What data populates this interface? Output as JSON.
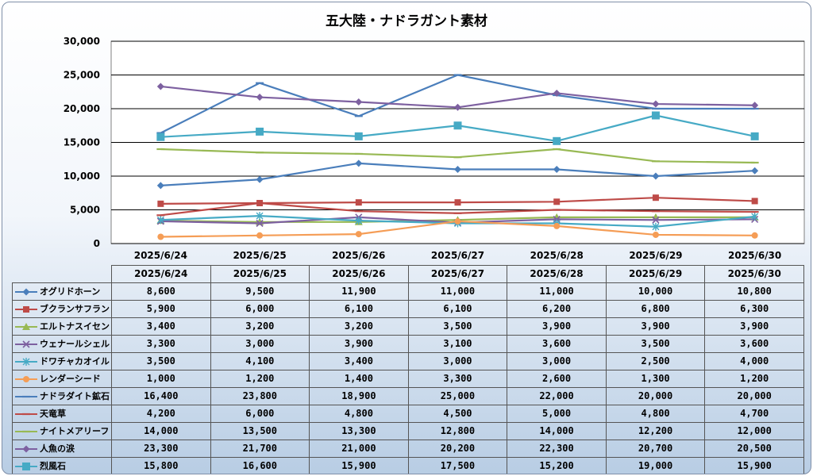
{
  "chart_data": {
    "type": "line",
    "title": "五大陸・ナドラガント素材",
    "categories": [
      "2025/6/24",
      "2025/6/25",
      "2025/6/26",
      "2025/6/27",
      "2025/6/28",
      "2025/6/29",
      "2025/6/30"
    ],
    "ylim": [
      0,
      30000
    ],
    "yticks": [
      "0",
      "5,000",
      "10,000",
      "15,000",
      "20,000",
      "25,000",
      "30,000"
    ],
    "grid": true,
    "legend": "data-table",
    "series": [
      {
        "name": "オグリドホーン",
        "color": "#4a7ebb",
        "marker": "diamond",
        "values": [
          8600,
          9500,
          11900,
          11000,
          11000,
          10000,
          10800
        ],
        "labels": [
          "8,600",
          "9,500",
          "11,900",
          "11,000",
          "11,000",
          "10,000",
          "10,800"
        ]
      },
      {
        "name": "ブクランサフラン",
        "color": "#be4b48",
        "marker": "square",
        "values": [
          5900,
          6000,
          6100,
          6100,
          6200,
          6800,
          6300
        ],
        "labels": [
          "5,900",
          "6,000",
          "6,100",
          "6,100",
          "6,200",
          "6,800",
          "6,300"
        ]
      },
      {
        "name": "エルトナスイセン",
        "color": "#98b954",
        "marker": "triangle",
        "values": [
          3400,
          3200,
          3200,
          3500,
          3900,
          3900,
          3900
        ],
        "labels": [
          "3,400",
          "3,200",
          "3,200",
          "3,500",
          "3,900",
          "3,900",
          "3,900"
        ]
      },
      {
        "name": "ウェナールシェル",
        "color": "#7d60a0",
        "marker": "x",
        "values": [
          3300,
          3000,
          3900,
          3100,
          3600,
          3500,
          3600
        ],
        "labels": [
          "3,300",
          "3,000",
          "3,900",
          "3,100",
          "3,600",
          "3,500",
          "3,600"
        ]
      },
      {
        "name": "ドワチャカオイル",
        "color": "#46aac5",
        "marker": "star",
        "values": [
          3500,
          4100,
          3400,
          3000,
          3000,
          2500,
          4000
        ],
        "labels": [
          "3,500",
          "4,100",
          "3,400",
          "3,000",
          "3,000",
          "2,500",
          "4,000"
        ]
      },
      {
        "name": "レンダーシード",
        "color": "#f59d56",
        "marker": "circle",
        "values": [
          1000,
          1200,
          1400,
          3300,
          2600,
          1300,
          1200
        ],
        "labels": [
          "1,000",
          "1,200",
          "1,400",
          "3,300",
          "2,600",
          "1,300",
          "1,200"
        ]
      },
      {
        "name": "ナドラダイト鉱石",
        "color": "#4a7ebb",
        "marker": "dash",
        "values": [
          16400,
          23800,
          18900,
          25000,
          22000,
          20000,
          20000
        ],
        "labels": [
          "16,400",
          "23,800",
          "18,900",
          "25,000",
          "22,000",
          "20,000",
          "20,000"
        ]
      },
      {
        "name": "天竜草",
        "color": "#be4b48",
        "marker": "dash",
        "values": [
          4200,
          6000,
          4800,
          4500,
          5000,
          4800,
          4700
        ],
        "labels": [
          "4,200",
          "6,000",
          "4,800",
          "4,500",
          "5,000",
          "4,800",
          "4,700"
        ]
      },
      {
        "name": "ナイトメアリーフ",
        "color": "#98b954",
        "marker": "dash",
        "values": [
          14000,
          13500,
          13300,
          12800,
          14000,
          12200,
          12000
        ],
        "labels": [
          "14,000",
          "13,500",
          "13,300",
          "12,800",
          "14,000",
          "12,200",
          "12,000"
        ]
      },
      {
        "name": "人魚の涙",
        "color": "#7d60a0",
        "marker": "diamond",
        "values": [
          23300,
          21700,
          21000,
          20200,
          22300,
          20700,
          20500
        ],
        "labels": [
          "23,300",
          "21,700",
          "21,000",
          "20,200",
          "22,300",
          "20,700",
          "20,500"
        ]
      },
      {
        "name": "烈風石",
        "color": "#46aac5",
        "marker": "bigsquare",
        "values": [
          15800,
          16600,
          15900,
          17500,
          15200,
          19000,
          15900
        ],
        "labels": [
          "15,800",
          "16,600",
          "15,900",
          "17,500",
          "15,200",
          "19,000",
          "15,900"
        ]
      }
    ]
  }
}
